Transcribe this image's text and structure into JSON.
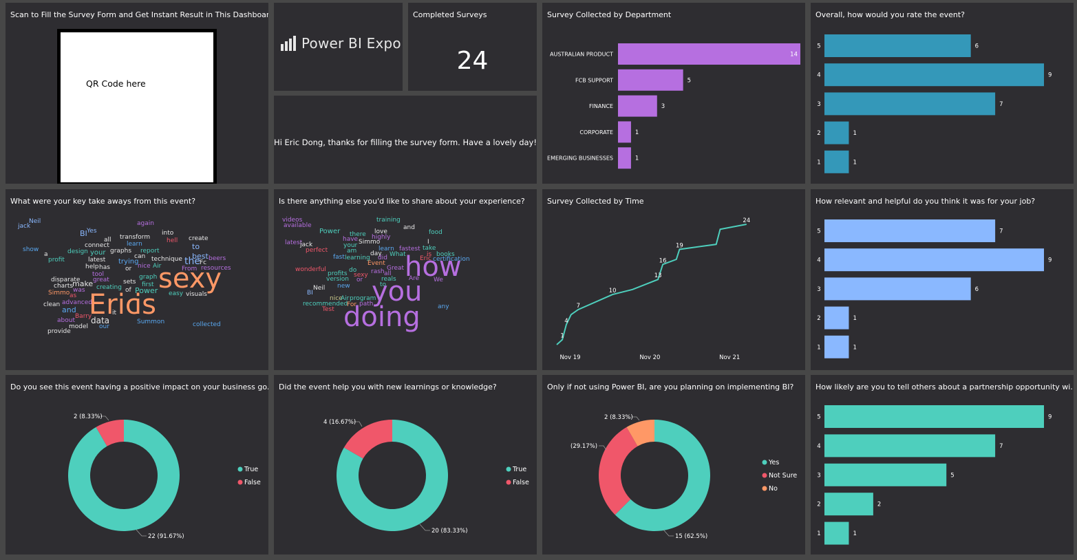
{
  "scan": {
    "title": "Scan to Fill the Survey Form and Get Instant Result in This Dashboard",
    "qr_text": "QR Code here"
  },
  "logo": {
    "text": "Power BI Expo",
    "icon": "power-bi-logo-icon"
  },
  "completed": {
    "title": "Completed Surveys",
    "value": "24"
  },
  "greeting": {
    "text": "Hi Eric Dong, thanks for filling the survey form. Have a lovely day!"
  },
  "colors": {
    "tile_bg": "#2e2d31",
    "page_bg": "#474747",
    "purple": "#b66fe0",
    "teal_dark": "#3498b9",
    "blue_light": "#8ab8ff",
    "teal": "#4ecfbd",
    "red": "#f0576a",
    "orange": "#ff9866"
  },
  "wordclouds": {
    "takeaways": {
      "title": "What were your key take aways from this event?"
    },
    "share": {
      "title": "Is there anything else you'd like to share about your experience?"
    }
  },
  "donuts": [
    {
      "title": "Do you see this event having a positive impact on your business go...",
      "legend": [
        "True",
        "False"
      ]
    },
    {
      "title": "Did the event help you with new learnings or knowledge?",
      "legend": [
        "True",
        "False"
      ]
    },
    {
      "title": "Only if not using Power BI, are you planning on implementing BI?",
      "legend": [
        "Yes",
        "Not Sure",
        "No"
      ]
    }
  ],
  "chart_data": [
    {
      "id": "dept",
      "type": "bar",
      "orientation": "horizontal",
      "title": "Survey Collected by Department",
      "categories": [
        "AUSTRALIAN PRODUCT",
        "FCB SUPPORT",
        "FINANCE",
        "CORPORATE",
        "EMERGING BUSINESSES"
      ],
      "values": [
        14,
        5,
        3,
        1,
        1
      ],
      "xlim": [
        0,
        14
      ],
      "color": "#b66fe0"
    },
    {
      "id": "rate",
      "type": "bar",
      "orientation": "horizontal",
      "title": "Overall, how would you rate the event?",
      "categories": [
        "5",
        "4",
        "3",
        "2",
        "1"
      ],
      "values": [
        6,
        9,
        7,
        1,
        1
      ],
      "xlim": [
        0,
        9
      ],
      "color": "#3498b9"
    },
    {
      "id": "time",
      "type": "line",
      "title": "Survey Collected by Time",
      "x": [
        0,
        0.07,
        0.12,
        0.18,
        0.27,
        0.7,
        0.95,
        1.27,
        1.33,
        1.5,
        1.54,
        2.0,
        2.05,
        2.38
      ],
      "y": [
        0,
        1,
        4,
        6,
        7,
        10,
        11,
        13,
        16,
        17,
        19,
        20,
        23,
        24
      ],
      "labels": [
        {
          "i": 1,
          "v": "1"
        },
        {
          "i": 2,
          "v": "4"
        },
        {
          "i": 4,
          "v": "7"
        },
        {
          "i": 5,
          "v": "10"
        },
        {
          "i": 7,
          "v": "13"
        },
        {
          "i": 8,
          "v": "16"
        },
        {
          "i": 10,
          "v": "19"
        },
        {
          "i": 13,
          "v": "24"
        }
      ],
      "xticks": [
        {
          "v": 0.6,
          "label": "Nov 19"
        },
        {
          "v": 1.6,
          "label": "Nov 20"
        },
        {
          "v": 2.6,
          "label": "Nov 21"
        }
      ],
      "xlim": [
        0,
        2.9
      ],
      "ylim": [
        0,
        24
      ],
      "color": "#4ecfbd"
    },
    {
      "id": "relevant",
      "type": "bar",
      "orientation": "horizontal",
      "title": "How relevant and helpful do you think it was for your job?",
      "categories": [
        "5",
        "4",
        "3",
        "2",
        "1"
      ],
      "values": [
        7,
        9,
        6,
        1,
        1
      ],
      "xlim": [
        0,
        9
      ],
      "color": "#8ab8ff"
    },
    {
      "id": "impact",
      "type": "pie",
      "donut": true,
      "title": "Do you see this event having a positive impact on your business go...",
      "categories": [
        "True",
        "False"
      ],
      "values": [
        22,
        2
      ],
      "labels": [
        "22 (91.67%)",
        "2 (8.33%)"
      ],
      "colors": [
        "#4ecfbd",
        "#f0576a"
      ]
    },
    {
      "id": "learn",
      "type": "pie",
      "donut": true,
      "title": "Did the event help you with new learnings or knowledge?",
      "categories": [
        "True",
        "False"
      ],
      "values": [
        20,
        4
      ],
      "labels": [
        "20 (83.33%)",
        "4 (16.67%)"
      ],
      "colors": [
        "#4ecfbd",
        "#f0576a"
      ]
    },
    {
      "id": "implement",
      "type": "pie",
      "donut": true,
      "title": "Only if not using Power BI, are you planning on implementing BI?",
      "categories": [
        "Yes",
        "Not Sure",
        "No"
      ],
      "values": [
        15,
        7,
        2
      ],
      "labels": [
        "15 (62.5%)",
        "(29.17%)",
        "2 (8.33%)"
      ],
      "colors": [
        "#4ecfbd",
        "#f0576a",
        "#ff9866"
      ]
    },
    {
      "id": "partner",
      "type": "bar",
      "orientation": "horizontal",
      "title": "How likely are you to tell others about a partnership opportunity wi...",
      "categories": [
        "5",
        "4",
        "3",
        "2",
        "1"
      ],
      "values": [
        9,
        7,
        5,
        2,
        1
      ],
      "xlim": [
        0,
        9
      ],
      "color": "#4ecfbd"
    }
  ]
}
